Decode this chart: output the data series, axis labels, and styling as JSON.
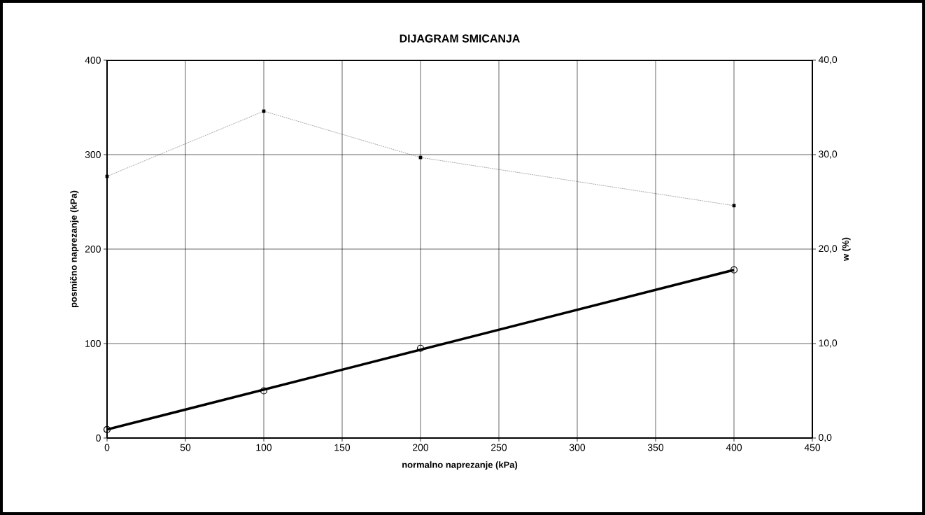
{
  "chart_data": {
    "type": "scatter",
    "title": "DIJAGRAM SMICANJA",
    "xlabel": "normalno naprezanje (kPa)",
    "ylabel": "posmično naprezanje (kPa)",
    "y2label": "w (%)",
    "xlim": [
      0,
      450
    ],
    "xticks": [
      0,
      50,
      100,
      150,
      200,
      250,
      300,
      350,
      400,
      450
    ],
    "ylim": [
      0,
      400
    ],
    "yticks": [
      0,
      100,
      200,
      300,
      400
    ],
    "y2lim": [
      0,
      40
    ],
    "y2ticks": [
      {
        "value": 0,
        "label": "0,0"
      },
      {
        "value": 10,
        "label": "10,0"
      },
      {
        "value": 20,
        "label": "20,0"
      },
      {
        "value": 30,
        "label": "30,0"
      },
      {
        "value": 40,
        "label": "40,0"
      }
    ],
    "grid": true,
    "series": [
      {
        "type": "line",
        "color": "#000000",
        "marker": "none",
        "x": [
          0,
          400
        ],
        "values": [
          9,
          178
        ]
      },
      {
        "color": "#000000",
        "marker": "circle",
        "x": [
          0,
          100,
          200,
          400
        ],
        "values": [
          9,
          50,
          95,
          178
        ]
      },
      {
        "type": "line",
        "axis": "y2",
        "color": "#000000",
        "marker": "square",
        "line_style": "dotted",
        "x": [
          0,
          100,
          200,
          400
        ],
        "values": [
          27.7,
          34.6,
          29.7,
          24.6
        ]
      }
    ]
  }
}
